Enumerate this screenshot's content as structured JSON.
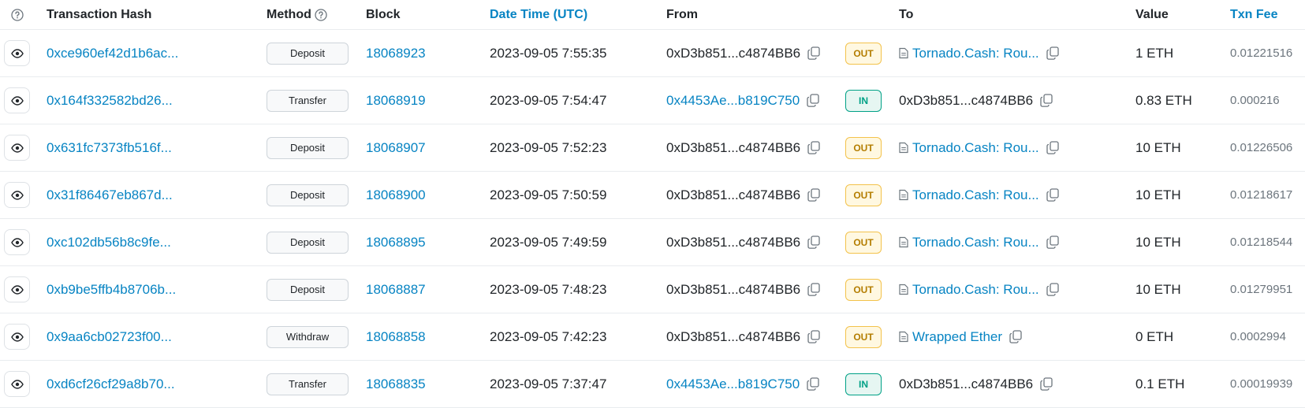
{
  "header": {
    "hash": "Transaction Hash",
    "method": "Method",
    "block": "Block",
    "date": "Date Time (UTC)",
    "from": "From",
    "to": "To",
    "value": "Value",
    "fee": "Txn Fee"
  },
  "colors": {
    "link": "#0784c3",
    "out_bg": "#fff8e1",
    "out_text": "#b47d00",
    "in_bg": "#e6f6f2",
    "in_text": "#00a186"
  },
  "rows": [
    {
      "hash": "0xce960ef42d1b6ac...",
      "method": "Deposit",
      "block": "18068923",
      "date": "2023-09-05 7:55:35",
      "from": "0xD3b851...c4874BB6",
      "from_link": false,
      "dir": "OUT",
      "to": "Tornado.Cash: Rou...",
      "to_contract": true,
      "to_link": true,
      "value": "1 ETH",
      "fee": "0.01221516"
    },
    {
      "hash": "0x164f332582bd26...",
      "method": "Transfer",
      "block": "18068919",
      "date": "2023-09-05 7:54:47",
      "from": "0x4453Ae...b819C750",
      "from_link": true,
      "dir": "IN",
      "to": "0xD3b851...c4874BB6",
      "to_contract": false,
      "to_link": false,
      "value": "0.83 ETH",
      "fee": "0.000216"
    },
    {
      "hash": "0x631fc7373fb516f...",
      "method": "Deposit",
      "block": "18068907",
      "date": "2023-09-05 7:52:23",
      "from": "0xD3b851...c4874BB6",
      "from_link": false,
      "dir": "OUT",
      "to": "Tornado.Cash: Rou...",
      "to_contract": true,
      "to_link": true,
      "value": "10 ETH",
      "fee": "0.01226506"
    },
    {
      "hash": "0x31f86467eb867d...",
      "method": "Deposit",
      "block": "18068900",
      "date": "2023-09-05 7:50:59",
      "from": "0xD3b851...c4874BB6",
      "from_link": false,
      "dir": "OUT",
      "to": "Tornado.Cash: Rou...",
      "to_contract": true,
      "to_link": true,
      "value": "10 ETH",
      "fee": "0.01218617"
    },
    {
      "hash": "0xc102db56b8c9fe...",
      "method": "Deposit",
      "block": "18068895",
      "date": "2023-09-05 7:49:59",
      "from": "0xD3b851...c4874BB6",
      "from_link": false,
      "dir": "OUT",
      "to": "Tornado.Cash: Rou...",
      "to_contract": true,
      "to_link": true,
      "value": "10 ETH",
      "fee": "0.01218544"
    },
    {
      "hash": "0xb9be5ffb4b8706b...",
      "method": "Deposit",
      "block": "18068887",
      "date": "2023-09-05 7:48:23",
      "from": "0xD3b851...c4874BB6",
      "from_link": false,
      "dir": "OUT",
      "to": "Tornado.Cash: Rou...",
      "to_contract": true,
      "to_link": true,
      "value": "10 ETH",
      "fee": "0.01279951"
    },
    {
      "hash": "0x9aa6cb02723f00...",
      "method": "Withdraw",
      "block": "18068858",
      "date": "2023-09-05 7:42:23",
      "from": "0xD3b851...c4874BB6",
      "from_link": false,
      "dir": "OUT",
      "to": "Wrapped Ether",
      "to_contract": true,
      "to_link": true,
      "value": "0 ETH",
      "fee": "0.0002994"
    },
    {
      "hash": "0xd6cf26cf29a8b70...",
      "method": "Transfer",
      "block": "18068835",
      "date": "2023-09-05 7:37:47",
      "from": "0x4453Ae...b819C750",
      "from_link": true,
      "dir": "IN",
      "to": "0xD3b851...c4874BB6",
      "to_contract": false,
      "to_link": false,
      "value": "0.1 ETH",
      "fee": "0.00019939"
    }
  ]
}
